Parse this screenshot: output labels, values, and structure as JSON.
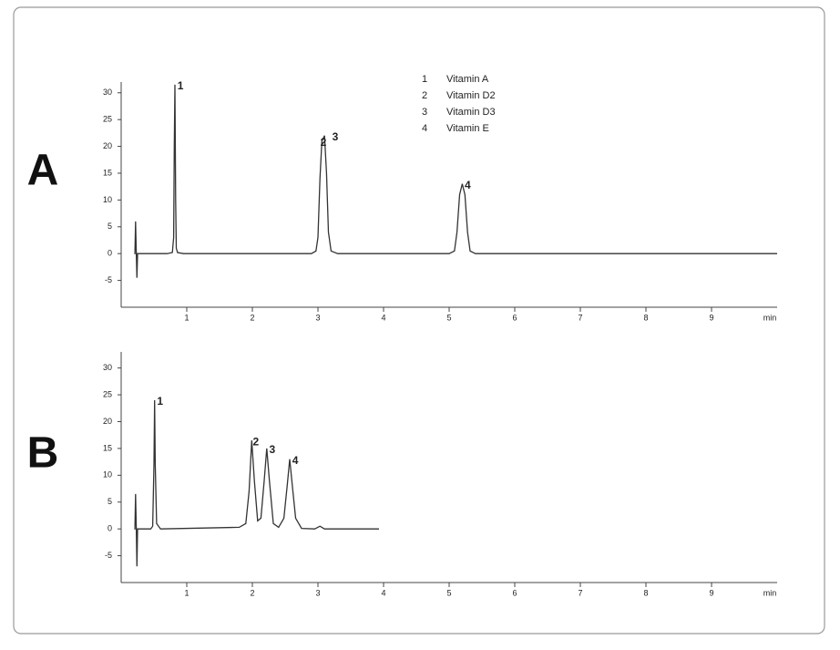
{
  "chart_data": [
    {
      "type": "line",
      "panel_label": "A",
      "xlabel": "min",
      "color": "#333333",
      "x": [
        0.2,
        0.21,
        0.22,
        0.23,
        0.24,
        0.25,
        0.7,
        0.78,
        0.8,
        0.81,
        0.82,
        0.83,
        0.84,
        0.86,
        0.95,
        2.9,
        2.97,
        3.0,
        3.03,
        3.06,
        3.08,
        3.1,
        3.13,
        3.16,
        3.2,
        3.3,
        5.0,
        5.08,
        5.12,
        5.16,
        5.2,
        5.24,
        5.28,
        5.32,
        5.4,
        10.0
      ],
      "values": [
        0,
        0,
        6,
        0,
        -4.5,
        0,
        0,
        0.2,
        3,
        20,
        31.5,
        10,
        1,
        0.2,
        0,
        0,
        0.5,
        3,
        14,
        21,
        21.5,
        22,
        15,
        4,
        0.5,
        0,
        0,
        0.5,
        4,
        11,
        13,
        11,
        4,
        0.5,
        0,
        0
      ],
      "xlim": [
        0,
        10
      ],
      "xticks": [
        1,
        2,
        3,
        4,
        5,
        6,
        7,
        8,
        9
      ],
      "ylim": [
        -10,
        32
      ],
      "yticks": [
        -5,
        0,
        5,
        10,
        15,
        20,
        25,
        30
      ],
      "annotations": [
        {
          "text": "1",
          "x": 0.82,
          "y": 31.5
        },
        {
          "text": "2",
          "x": 3.0,
          "y": 21
        },
        {
          "text": "3",
          "x": 3.18,
          "y": 22
        },
        {
          "text": "4",
          "x": 5.2,
          "y": 13
        }
      ],
      "legend": [
        {
          "number": "1",
          "name": "Vitamin A"
        },
        {
          "number": "2",
          "name": "Vitamin D2"
        },
        {
          "number": "3",
          "name": "Vitamin D3"
        },
        {
          "number": "4",
          "name": "Vitamin E"
        }
      ]
    },
    {
      "type": "line",
      "panel_label": "B",
      "xlabel": "min",
      "color": "#333333",
      "x": [
        0.2,
        0.21,
        0.22,
        0.23,
        0.24,
        0.25,
        0.45,
        0.48,
        0.5,
        0.51,
        0.52,
        0.54,
        0.6,
        1.8,
        1.9,
        1.95,
        1.99,
        2.03,
        2.08,
        2.13,
        2.18,
        2.22,
        2.26,
        2.32,
        2.4,
        2.48,
        2.53,
        2.57,
        2.61,
        2.66,
        2.75,
        2.95,
        3.03,
        3.1,
        3.93
      ],
      "values": [
        0,
        0,
        6.5,
        0,
        -7,
        0,
        0,
        0.5,
        12,
        24,
        12,
        1,
        0,
        0.3,
        1,
        7,
        16.5,
        9,
        1.5,
        2,
        9,
        15,
        9,
        1,
        0.3,
        2,
        8,
        13,
        8,
        2,
        0.1,
        0,
        0.5,
        0,
        0
      ],
      "xlim": [
        0,
        10
      ],
      "xticks": [
        1,
        2,
        3,
        4,
        5,
        6,
        7,
        8,
        9
      ],
      "ylim": [
        -10,
        33
      ],
      "yticks": [
        -5,
        0,
        5,
        10,
        15,
        20,
        25,
        30
      ],
      "annotations": [
        {
          "text": "1",
          "x": 0.51,
          "y": 24
        },
        {
          "text": "2",
          "x": 1.97,
          "y": 16.5
        },
        {
          "text": "3",
          "x": 2.22,
          "y": 15
        },
        {
          "text": "4",
          "x": 2.57,
          "y": 13
        }
      ]
    }
  ]
}
